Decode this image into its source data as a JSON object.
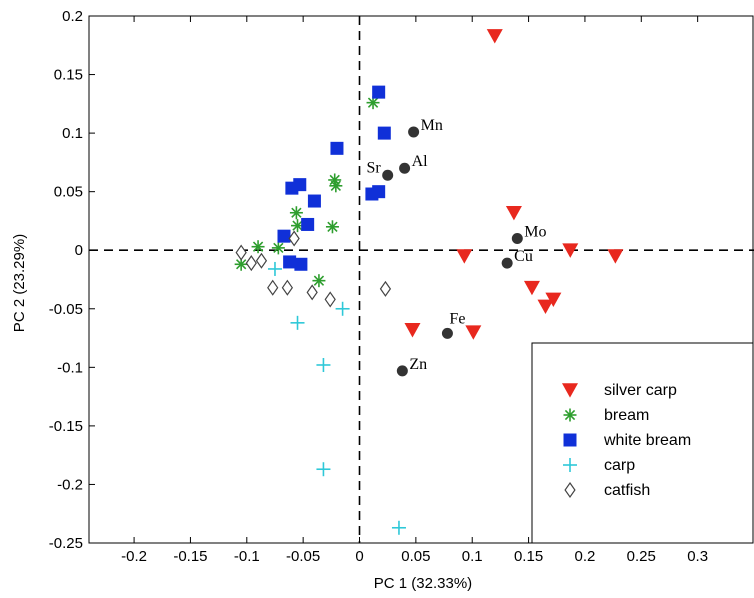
{
  "chart_data": {
    "type": "scatter",
    "title": "",
    "xlabel": "PC 1 (32.33%)",
    "ylabel": "PC 2 (23.29%)",
    "xlim": [
      -0.24,
      0.35
    ],
    "ylim": [
      -0.25,
      0.2
    ],
    "xticks": [
      -0.2,
      -0.15,
      -0.1,
      -0.05,
      0,
      0.05,
      0.1,
      0.15,
      0.2,
      0.25,
      0.3
    ],
    "xtick_labels": [
      "-0.2",
      "-0.15",
      "-0.1",
      "-0.05",
      "0",
      "0.05",
      "0.1",
      "0.15",
      "0.2",
      "0.25",
      "0.3"
    ],
    "yticks": [
      0.2,
      0.15,
      0.1,
      0.05,
      0,
      -0.05,
      -0.1,
      -0.15,
      -0.2,
      -0.25
    ],
    "ytick_labels": [
      "0.2",
      "0.15",
      "0.1",
      "0.05",
      "0",
      "-0.05",
      "-0.1",
      "-0.15",
      "-0.2",
      "-0.25"
    ],
    "grid": false,
    "zero_lines": true,
    "legend_position": "bottom-right",
    "series": [
      {
        "name": "silver carp",
        "marker": "triangle-down",
        "color": "#e8281e",
        "points": [
          [
            0.12,
            0.183
          ],
          [
            0.137,
            0.032
          ],
          [
            0.093,
            -0.005
          ],
          [
            0.187,
            0.0
          ],
          [
            0.227,
            -0.005
          ],
          [
            0.153,
            -0.032
          ],
          [
            0.172,
            -0.042
          ],
          [
            0.165,
            -0.048
          ],
          [
            0.047,
            -0.068
          ],
          [
            0.101,
            -0.07
          ]
        ]
      },
      {
        "name": "bream",
        "marker": "asterisk",
        "color": "#2e9e2e",
        "points": [
          [
            0.012,
            0.126
          ],
          [
            -0.022,
            0.06
          ],
          [
            -0.021,
            0.055
          ],
          [
            -0.024,
            0.02
          ],
          [
            -0.056,
            0.032
          ],
          [
            -0.055,
            0.021
          ],
          [
            -0.09,
            0.003
          ],
          [
            -0.072,
            0.002
          ],
          [
            -0.105,
            -0.012
          ],
          [
            -0.036,
            -0.026
          ]
        ]
      },
      {
        "name": "white bream",
        "marker": "square",
        "color": "#1030d8",
        "points": [
          [
            0.017,
            0.135
          ],
          [
            0.022,
            0.1
          ],
          [
            -0.02,
            0.087
          ],
          [
            -0.053,
            0.056
          ],
          [
            -0.06,
            0.053
          ],
          [
            -0.04,
            0.042
          ],
          [
            0.017,
            0.05
          ],
          [
            0.011,
            0.048
          ],
          [
            -0.067,
            0.012
          ],
          [
            -0.046,
            0.022
          ],
          [
            -0.062,
            -0.01
          ],
          [
            -0.052,
            -0.012
          ]
        ]
      },
      {
        "name": "carp",
        "marker": "plus",
        "color": "#2ec8d8",
        "points": [
          [
            -0.075,
            -0.016
          ],
          [
            -0.055,
            -0.062
          ],
          [
            -0.015,
            -0.05
          ],
          [
            -0.032,
            -0.098
          ],
          [
            -0.032,
            -0.187
          ],
          [
            0.035,
            -0.237
          ]
        ]
      },
      {
        "name": "catfish",
        "marker": "diamond",
        "color": "#444444",
        "points": [
          [
            -0.105,
            -0.002
          ],
          [
            -0.096,
            -0.011
          ],
          [
            -0.087,
            -0.009
          ],
          [
            -0.058,
            0.01
          ],
          [
            -0.077,
            -0.032
          ],
          [
            -0.064,
            -0.032
          ],
          [
            -0.042,
            -0.036
          ],
          [
            -0.026,
            -0.042
          ],
          [
            0.023,
            -0.033
          ]
        ]
      }
    ],
    "element_loadings": [
      {
        "label": "Mn",
        "x": 0.048,
        "y": 0.101,
        "label_side": "right"
      },
      {
        "label": "Sr",
        "x": 0.025,
        "y": 0.064,
        "label_side": "left"
      },
      {
        "label": "Al",
        "x": 0.04,
        "y": 0.07,
        "label_side": "right"
      },
      {
        "label": "Mo",
        "x": 0.14,
        "y": 0.01,
        "label_side": "right"
      },
      {
        "label": "Cu",
        "x": 0.131,
        "y": -0.011,
        "label_side": "right"
      },
      {
        "label": "Fe",
        "x": 0.078,
        "y": -0.071,
        "label_side": "above"
      },
      {
        "label": "Zn",
        "x": 0.038,
        "y": -0.103,
        "label_side": "right"
      }
    ],
    "loading_color": "#333333"
  }
}
